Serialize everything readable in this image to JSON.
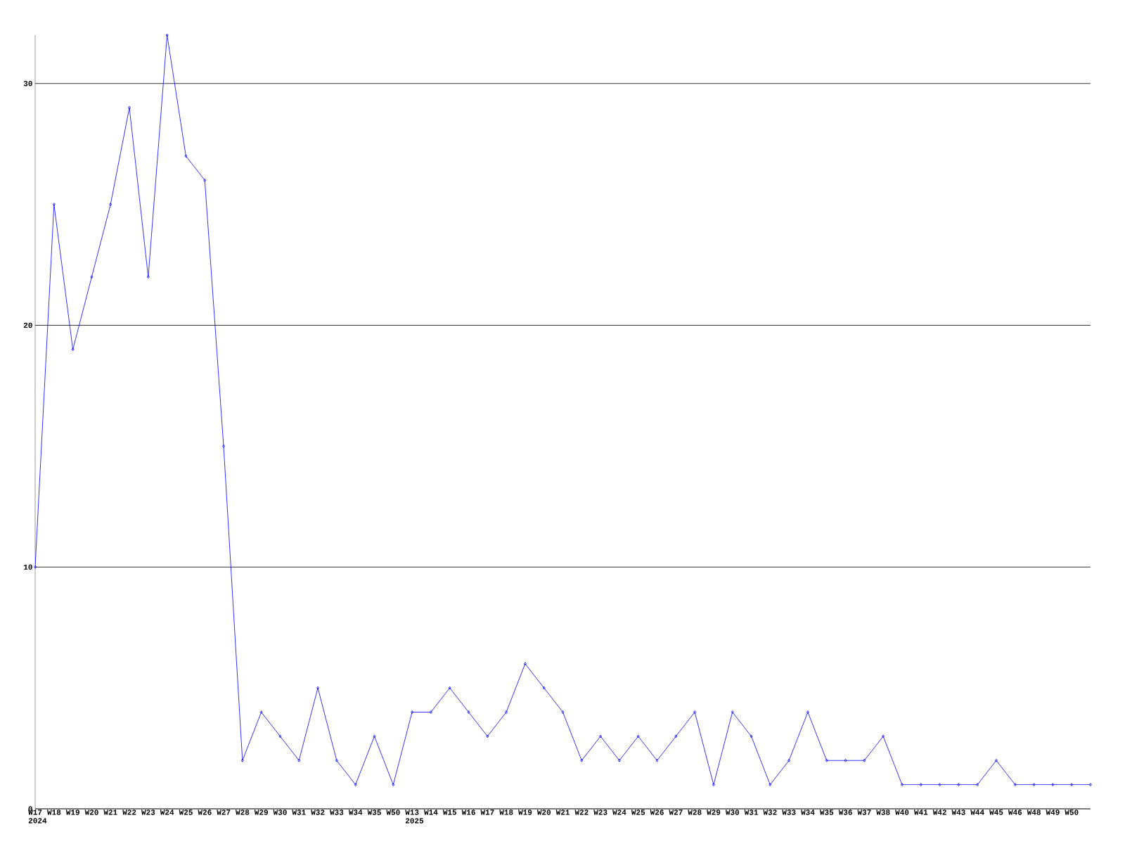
{
  "chart_data": {
    "type": "line",
    "categories": [
      "W17 2024",
      "W18",
      "W19",
      "W20",
      "W21",
      "W22",
      "W23",
      "W24",
      "W25",
      "W26",
      "W27",
      "W28",
      "W29",
      "W30",
      "W31",
      "W32",
      "W33",
      "W34",
      "W35",
      "W50",
      "W13 2025",
      "W14",
      "W15",
      "W16",
      "W17",
      "W18",
      "W19",
      "W20",
      "W21",
      "W22",
      "W23",
      "W24",
      "W25",
      "W26",
      "W27",
      "W28",
      "W29",
      "W30",
      "W31",
      "W32",
      "W33",
      "W34",
      "W35",
      "W36",
      "W37",
      "W38",
      "W40",
      "W41",
      "W42",
      "W43",
      "W44",
      "W45",
      "W46",
      "W48",
      "W49",
      "W50",
      null
    ],
    "series": [
      {
        "color": "#0000ff",
        "values": [
          10,
          25,
          19,
          22,
          25,
          29,
          22,
          32,
          27,
          26,
          15,
          2,
          4,
          3,
          2,
          5,
          2,
          1,
          3,
          1,
          4,
          4,
          5,
          4,
          3,
          4,
          6,
          5,
          4,
          2,
          3,
          2,
          3,
          2,
          3,
          4,
          1,
          4,
          3,
          1,
          2,
          4,
          2,
          2,
          2,
          3,
          1,
          1,
          1,
          1,
          1,
          2,
          1,
          1,
          1,
          1,
          1
        ]
      }
    ],
    "ylim": [
      0,
      32
    ],
    "yticks": [
      0,
      10,
      20,
      30
    ],
    "grid": "y",
    "marker": "diamond",
    "line_style": "solid"
  }
}
